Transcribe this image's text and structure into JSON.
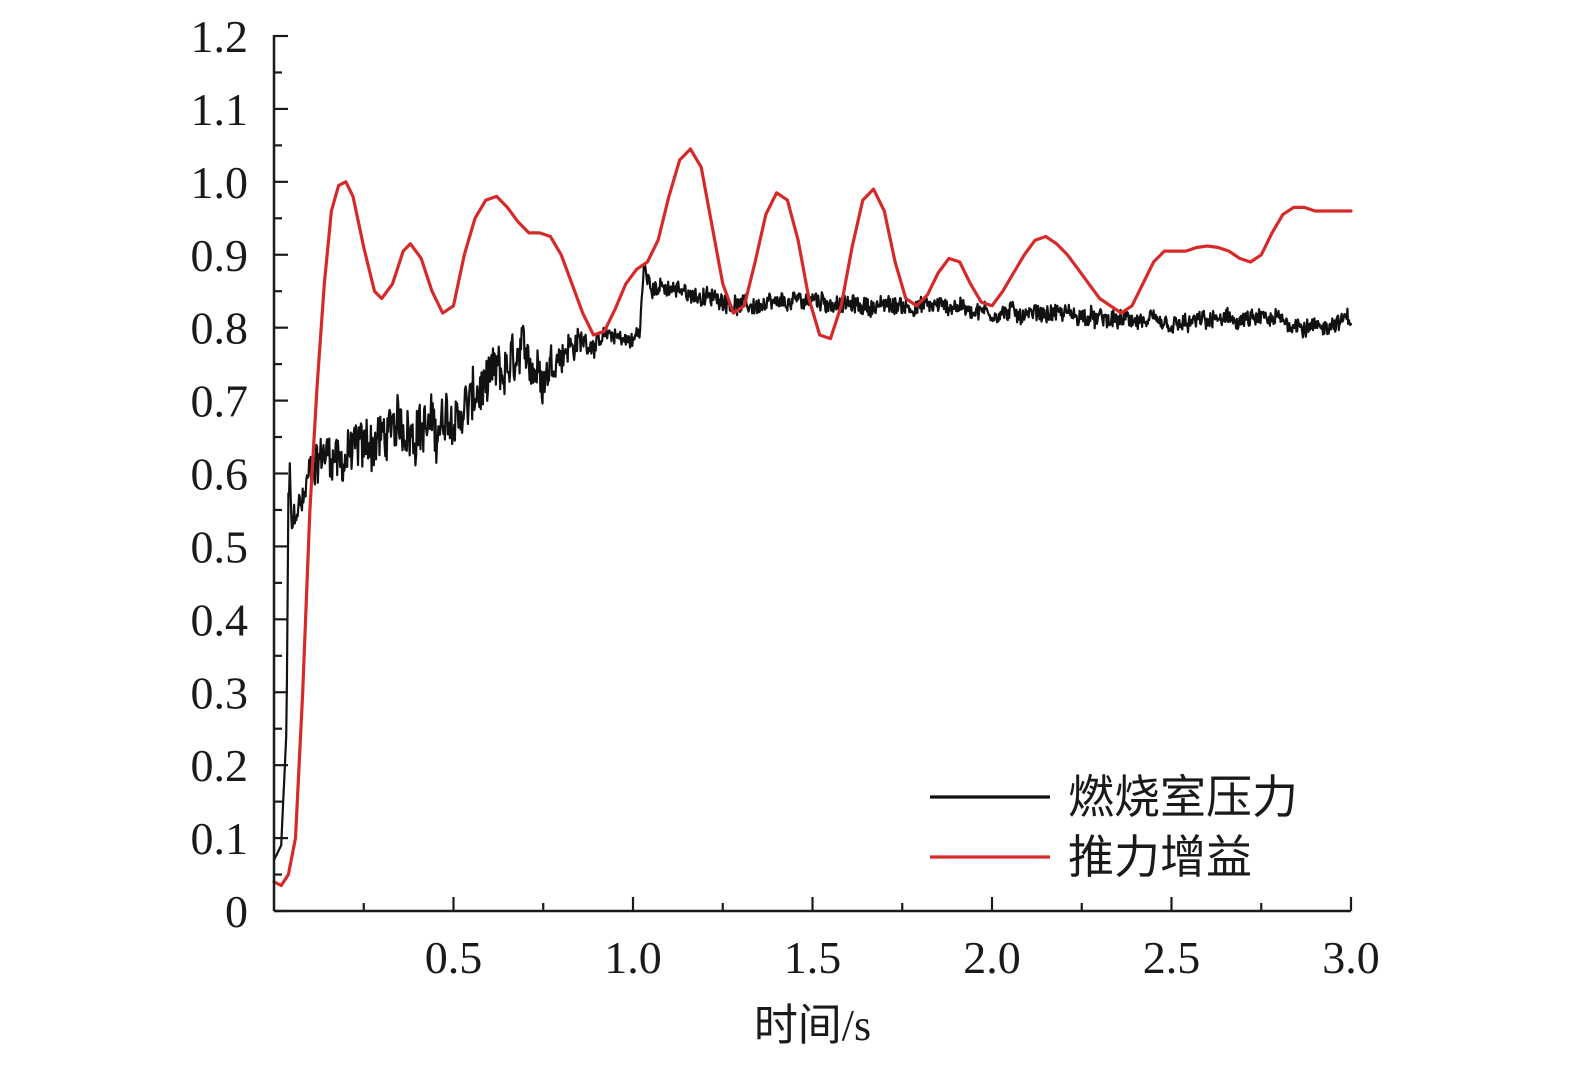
{
  "chart_data": {
    "type": "line",
    "xlabel": "时间/s",
    "ylabel": "",
    "xlim": [
      0,
      3.0
    ],
    "ylim": [
      0,
      1.2
    ],
    "x_tick_labels": [
      "0.5",
      "1.0",
      "1.5",
      "2.0",
      "2.5",
      "3.0"
    ],
    "x_tick_values": [
      0.5,
      1.0,
      1.5,
      2.0,
      2.5,
      3.0
    ],
    "x_minor_ticks": [
      0.25,
      0.75,
      1.25,
      1.75,
      2.25,
      2.75
    ],
    "y_tick_labels": [
      "0",
      "0.1",
      "0.2",
      "0.3",
      "0.4",
      "0.5",
      "0.6",
      "0.7",
      "0.8",
      "0.9",
      "1.0",
      "1.1",
      "1.2"
    ],
    "y_tick_values": [
      0,
      0.1,
      0.2,
      0.3,
      0.4,
      0.5,
      0.6,
      0.7,
      0.8,
      0.9,
      1.0,
      1.1,
      1.2
    ],
    "grid": false,
    "legend_position": "bottom-right",
    "series": [
      {
        "name": "燃烧室压力",
        "color": "#111111",
        "noisy": true,
        "x": [
          0.0,
          0.02,
          0.035,
          0.04,
          0.045,
          0.05,
          0.06,
          0.08,
          0.1,
          0.12,
          0.15,
          0.2,
          0.25,
          0.3,
          0.35,
          0.4,
          0.45,
          0.5,
          0.55,
          0.6,
          0.65,
          0.7,
          0.75,
          0.8,
          0.85,
          0.9,
          0.95,
          1.0,
          1.02,
          1.03,
          1.05,
          1.1,
          1.15,
          1.2,
          1.25,
          1.3,
          1.4,
          1.5,
          1.6,
          1.7,
          1.8,
          1.9,
          2.0,
          2.1,
          2.2,
          2.3,
          2.4,
          2.5,
          2.6,
          2.7,
          2.8,
          2.9,
          3.0
        ],
        "y": [
          0.07,
          0.09,
          0.25,
          0.55,
          0.6,
          0.52,
          0.55,
          0.56,
          0.6,
          0.62,
          0.63,
          0.62,
          0.64,
          0.65,
          0.66,
          0.67,
          0.66,
          0.67,
          0.7,
          0.72,
          0.74,
          0.76,
          0.74,
          0.77,
          0.78,
          0.78,
          0.79,
          0.78,
          0.8,
          0.88,
          0.86,
          0.85,
          0.85,
          0.84,
          0.84,
          0.83,
          0.83,
          0.84,
          0.83,
          0.83,
          0.83,
          0.83,
          0.82,
          0.82,
          0.82,
          0.81,
          0.81,
          0.8,
          0.81,
          0.81,
          0.81,
          0.8,
          0.81
        ],
        "noise_amplitude": [
          0.0,
          0.0,
          0.0,
          0.04,
          0.04,
          0.03,
          0.03,
          0.04,
          0.05,
          0.05,
          0.05,
          0.06,
          0.06,
          0.06,
          0.06,
          0.06,
          0.06,
          0.06,
          0.06,
          0.06,
          0.06,
          0.05,
          0.05,
          0.04,
          0.03,
          0.02,
          0.02,
          0.02,
          0.02,
          0.02,
          0.02,
          0.02,
          0.02,
          0.02,
          0.02,
          0.02,
          0.02,
          0.02,
          0.02,
          0.02,
          0.02,
          0.02,
          0.02,
          0.02,
          0.02,
          0.02,
          0.02,
          0.02,
          0.02,
          0.02,
          0.02,
          0.02,
          0.02
        ]
      },
      {
        "name": "推力增益",
        "color": "#d62a2a",
        "noisy": false,
        "x": [
          0.0,
          0.02,
          0.04,
          0.06,
          0.08,
          0.1,
          0.12,
          0.14,
          0.16,
          0.18,
          0.2,
          0.22,
          0.25,
          0.28,
          0.3,
          0.33,
          0.36,
          0.38,
          0.41,
          0.44,
          0.47,
          0.5,
          0.53,
          0.56,
          0.59,
          0.62,
          0.65,
          0.68,
          0.71,
          0.74,
          0.77,
          0.8,
          0.83,
          0.86,
          0.89,
          0.92,
          0.95,
          0.98,
          1.01,
          1.04,
          1.07,
          1.1,
          1.13,
          1.16,
          1.19,
          1.22,
          1.25,
          1.28,
          1.31,
          1.34,
          1.37,
          1.4,
          1.43,
          1.46,
          1.49,
          1.52,
          1.55,
          1.58,
          1.61,
          1.64,
          1.67,
          1.7,
          1.73,
          1.76,
          1.79,
          1.82,
          1.85,
          1.88,
          1.91,
          1.94,
          1.97,
          2.0,
          2.03,
          2.06,
          2.09,
          2.12,
          2.15,
          2.18,
          2.21,
          2.24,
          2.27,
          2.3,
          2.33,
          2.36,
          2.39,
          2.42,
          2.45,
          2.48,
          2.51,
          2.54,
          2.57,
          2.6,
          2.63,
          2.66,
          2.69,
          2.72,
          2.75,
          2.78,
          2.81,
          2.84,
          2.87,
          2.9,
          2.93,
          2.96,
          2.99,
          3.0
        ],
        "y": [
          0.04,
          0.035,
          0.05,
          0.1,
          0.3,
          0.55,
          0.72,
          0.86,
          0.96,
          0.995,
          1.0,
          0.98,
          0.91,
          0.85,
          0.84,
          0.86,
          0.905,
          0.915,
          0.895,
          0.85,
          0.82,
          0.83,
          0.9,
          0.95,
          0.975,
          0.98,
          0.965,
          0.945,
          0.93,
          0.93,
          0.925,
          0.9,
          0.86,
          0.82,
          0.79,
          0.795,
          0.825,
          0.86,
          0.88,
          0.89,
          0.92,
          0.98,
          1.03,
          1.045,
          1.02,
          0.94,
          0.86,
          0.82,
          0.83,
          0.89,
          0.955,
          0.985,
          0.975,
          0.92,
          0.84,
          0.79,
          0.785,
          0.83,
          0.91,
          0.975,
          0.99,
          0.96,
          0.89,
          0.84,
          0.83,
          0.845,
          0.875,
          0.895,
          0.89,
          0.86,
          0.835,
          0.83,
          0.85,
          0.875,
          0.9,
          0.92,
          0.925,
          0.915,
          0.9,
          0.88,
          0.86,
          0.84,
          0.83,
          0.82,
          0.83,
          0.86,
          0.89,
          0.905,
          0.905,
          0.905,
          0.91,
          0.912,
          0.91,
          0.905,
          0.895,
          0.89,
          0.9,
          0.93,
          0.955,
          0.965,
          0.965,
          0.96,
          0.96,
          0.96,
          0.96,
          0.96
        ]
      }
    ]
  }
}
